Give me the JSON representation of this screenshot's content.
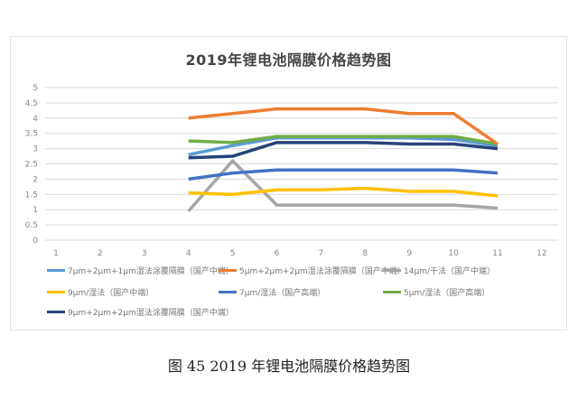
{
  "chart_data": {
    "type": "line",
    "title": "2019年锂电池隔膜价格趋势图",
    "xlabel": "",
    "ylabel": "",
    "x": [
      1,
      2,
      3,
      4,
      5,
      6,
      7,
      8,
      9,
      10,
      11,
      12
    ],
    "ylim": [
      0,
      5
    ],
    "yticks": [
      0,
      0.5,
      1,
      1.5,
      2,
      2.5,
      3,
      3.5,
      4,
      4.5,
      5
    ],
    "ytick_labels": [
      "0",
      "0.5",
      "1",
      "1.5",
      "2",
      "2.5",
      "3",
      "3.5",
      "4",
      "4.5",
      "5"
    ],
    "xtick_labels": [
      "1",
      "2",
      "3",
      "4",
      "5",
      "6",
      "7",
      "8",
      "9",
      "10",
      "11",
      "12"
    ],
    "grid": true,
    "legend_position": "bottom",
    "series": [
      {
        "name": "7μm+2μm+1μm湿法涂覆隔膜（国产中端）",
        "color": "#5B9BD5",
        "x": [
          4,
          5,
          6,
          7,
          8,
          9,
          10,
          11
        ],
        "values": [
          2.8,
          3.1,
          3.35,
          3.35,
          3.35,
          3.35,
          3.3,
          3.1
        ]
      },
      {
        "name": "5μm+2μm+2μm湿法涂覆隔膜（国产中端）",
        "color": "#ED7D31",
        "x": [
          4,
          5,
          6,
          7,
          8,
          9,
          10,
          11
        ],
        "values": [
          4.0,
          4.15,
          4.3,
          4.3,
          4.3,
          4.15,
          4.15,
          3.15
        ]
      },
      {
        "name": "14μm/干法（国产中端）",
        "color": "#A5A5A5",
        "x": [
          4,
          5,
          6,
          7,
          8,
          9,
          10,
          11
        ],
        "values": [
          0.95,
          2.6,
          1.15,
          1.15,
          1.15,
          1.15,
          1.15,
          1.05
        ]
      },
      {
        "name": "9μm/湿法（国产中端）",
        "color": "#FFC000",
        "x": [
          4,
          5,
          6,
          7,
          8,
          9,
          10,
          11
        ],
        "values": [
          1.55,
          1.5,
          1.65,
          1.65,
          1.7,
          1.6,
          1.6,
          1.45
        ]
      },
      {
        "name": "7μm/湿法（国产高端）",
        "color": "#4472C4",
        "x": [
          4,
          5,
          6,
          7,
          8,
          9,
          10,
          11
        ],
        "values": [
          2.0,
          2.2,
          2.3,
          2.3,
          2.3,
          2.3,
          2.3,
          2.2
        ]
      },
      {
        "name": "5μm/湿法（国产高端）",
        "color": "#70AD47",
        "x": [
          4,
          5,
          6,
          7,
          8,
          9,
          10,
          11
        ],
        "values": [
          3.25,
          3.2,
          3.4,
          3.4,
          3.4,
          3.4,
          3.4,
          3.15
        ]
      },
      {
        "name": "9μm+2μm+2μm湿法涂覆隔膜（国产中端）",
        "color": "#264478",
        "x": [
          4,
          5,
          6,
          7,
          8,
          9,
          10,
          11
        ],
        "values": [
          2.7,
          2.75,
          3.2,
          3.2,
          3.2,
          3.15,
          3.15,
          3.0
        ]
      }
    ]
  },
  "chart": {
    "title": "2019年锂电池隔膜价格趋势图",
    "caption": "图 45 2019 年锂电池隔膜价格趋势图"
  }
}
